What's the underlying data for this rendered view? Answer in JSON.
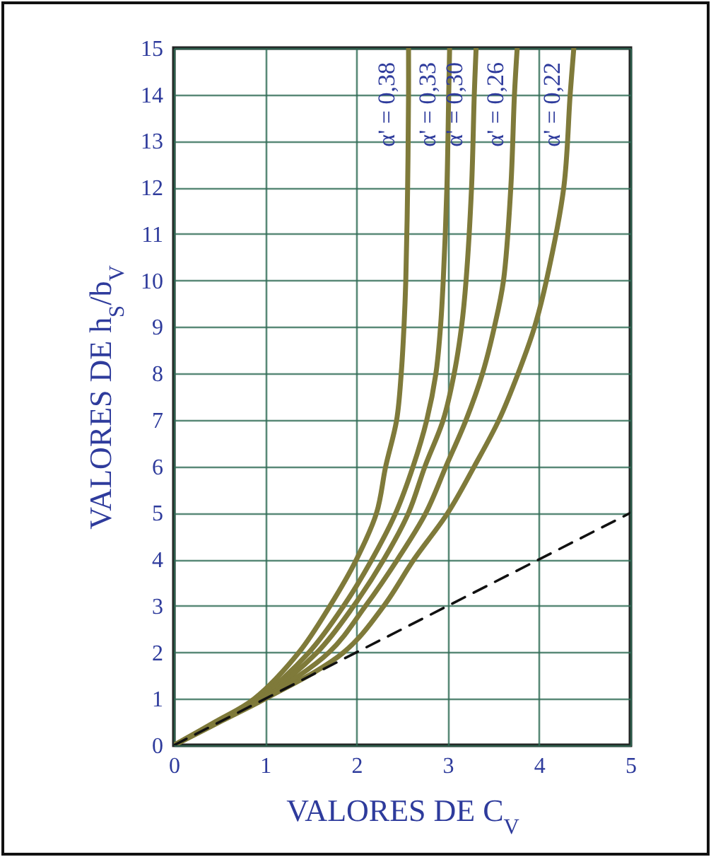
{
  "chart_data": {
    "type": "line",
    "xlabel": "VALORES DE C$_{V}$",
    "ylabel": "VALORES DE h$_{S}$/b$_{V}$",
    "xlim": [
      0,
      5
    ],
    "ylim": [
      0,
      15
    ],
    "xticks": [
      0,
      1,
      2,
      3,
      4,
      5
    ],
    "yticks": [
      0,
      1,
      2,
      3,
      4,
      5,
      6,
      7,
      8,
      9,
      10,
      11,
      12,
      13,
      14,
      15
    ],
    "grid": true,
    "series": [
      {
        "name": "α' = 0,38",
        "color": "#7f7a3a",
        "x": [
          0,
          0.45,
          0.88,
          1.37,
          1.71,
          2.0,
          2.22,
          2.32,
          2.44,
          2.49,
          2.52,
          2.54,
          2.56,
          2.57,
          2.57
        ],
        "values": [
          0,
          0.5,
          1,
          2,
          3,
          4,
          5,
          6,
          7,
          8,
          9,
          10,
          12,
          14,
          15
        ]
      },
      {
        "name": "α' = 0,33",
        "color": "#7f7a3a",
        "x": [
          0,
          0.47,
          0.92,
          1.48,
          1.86,
          2.17,
          2.43,
          2.62,
          2.77,
          2.87,
          2.92,
          2.95,
          2.99,
          3.01,
          3.02
        ],
        "values": [
          0,
          0.5,
          1,
          2,
          3,
          4,
          5,
          6,
          7,
          8,
          9,
          10,
          12,
          14,
          15
        ]
      },
      {
        "name": "α' = 0,30",
        "color": "#7f7a3a",
        "x": [
          0,
          0.48,
          0.95,
          1.57,
          1.97,
          2.3,
          2.57,
          2.75,
          2.95,
          3.07,
          3.15,
          3.2,
          3.26,
          3.29,
          3.31
        ],
        "values": [
          0,
          0.5,
          1,
          2,
          3,
          4,
          5,
          6,
          7,
          8,
          9,
          10,
          12,
          14,
          15
        ]
      },
      {
        "name": "α' = 0,26",
        "color": "#7f7a3a",
        "x": [
          0,
          0.49,
          0.97,
          1.7,
          2.1,
          2.45,
          2.76,
          2.98,
          3.2,
          3.38,
          3.51,
          3.61,
          3.69,
          3.73,
          3.76
        ],
        "values": [
          0,
          0.5,
          1,
          2,
          3,
          4,
          5,
          6,
          7,
          8,
          9,
          10,
          12,
          14,
          15
        ]
      },
      {
        "name": "α' = 0,22",
        "color": "#7f7a3a",
        "x": [
          0,
          0.5,
          1.0,
          1.86,
          2.3,
          2.63,
          3.0,
          3.29,
          3.56,
          3.77,
          3.95,
          4.08,
          4.27,
          4.34,
          4.38
        ],
        "values": [
          0,
          0.5,
          1,
          2,
          3,
          4,
          5,
          6,
          7,
          8,
          9,
          10,
          12,
          14,
          15
        ]
      },
      {
        "color": "#111111",
        "line_style": "dashed",
        "x": [
          0,
          5
        ],
        "values": [
          0,
          5
        ]
      }
    ]
  }
}
